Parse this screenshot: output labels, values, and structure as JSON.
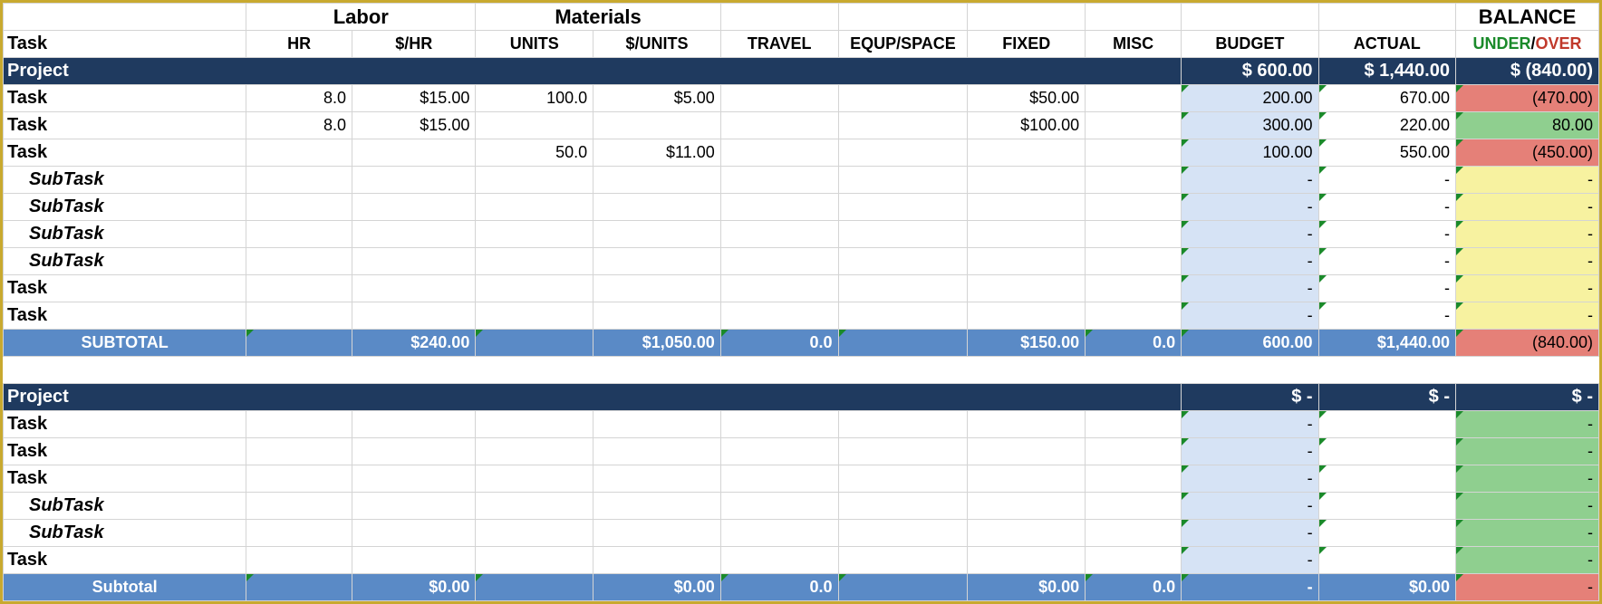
{
  "colors": {
    "frame": "#c8a92f",
    "project_bg": "#1f3a5f",
    "subtotal_bg": "#5a8ac6",
    "budget_bg": "#d6e3f5",
    "bal_over_bg": "#e58078",
    "bal_under_bg": "#8fcf8f",
    "bal_neutral_bg": "#f7f2a0",
    "under_text": "#1a8a2a",
    "over_text": "#c0392b",
    "grid": "#d4d4d4"
  },
  "header": {
    "task": "Task",
    "labor": "Labor",
    "materials": "Materials",
    "balance": "BALANCE",
    "under": "UNDER",
    "over": "OVER",
    "cols": {
      "hr": "HR",
      "rate": "$/HR",
      "units": "UNITS",
      "urate": "$/UNITS",
      "travel": "TRAVEL",
      "equp": "EQUP/SPACE",
      "fixed": "FIXED",
      "misc": "MISC",
      "budget": "BUDGET",
      "actual": "ACTUAL"
    }
  },
  "sections": [
    {
      "project": {
        "label": "Project",
        "budget": "$     600.00",
        "actual": "$ 1,440.00",
        "balance": "$        (840.00)"
      },
      "rows": [
        {
          "kind": "task",
          "label": "Task",
          "hr": "8.0",
          "rate": "$15.00",
          "units": "100.0",
          "urate": "$5.00",
          "travel": "",
          "equp": "",
          "fixed": "$50.00",
          "misc": "",
          "budget": "200.00",
          "actual": "670.00",
          "balance": "(470.00)",
          "bal": "red"
        },
        {
          "kind": "task",
          "label": "Task",
          "hr": "8.0",
          "rate": "$15.00",
          "units": "",
          "urate": "",
          "travel": "",
          "equp": "",
          "fixed": "$100.00",
          "misc": "",
          "budget": "300.00",
          "actual": "220.00",
          "balance": "80.00",
          "bal": "green"
        },
        {
          "kind": "task",
          "label": "Task",
          "hr": "",
          "rate": "",
          "units": "50.0",
          "urate": "$11.00",
          "travel": "",
          "equp": "",
          "fixed": "",
          "misc": "",
          "budget": "100.00",
          "actual": "550.00",
          "balance": "(450.00)",
          "bal": "red"
        },
        {
          "kind": "sub",
          "label": "SubTask",
          "budget": "-",
          "actual": "-",
          "balance": "-",
          "bal": "yellow"
        },
        {
          "kind": "sub",
          "label": "SubTask",
          "budget": "-",
          "actual": "-",
          "balance": "-",
          "bal": "yellow"
        },
        {
          "kind": "sub",
          "label": "SubTask",
          "budget": "-",
          "actual": "-",
          "balance": "-",
          "bal": "yellow"
        },
        {
          "kind": "sub",
          "label": "SubTask",
          "budget": "-",
          "actual": "-",
          "balance": "-",
          "bal": "yellow"
        },
        {
          "kind": "task",
          "label": "Task",
          "budget": "-",
          "actual": "-",
          "balance": "-",
          "bal": "yellow"
        },
        {
          "kind": "task",
          "label": "Task",
          "budget": "-",
          "actual": "-",
          "balance": "-",
          "bal": "yellow"
        }
      ],
      "subtotal": {
        "label": "SUBTOTAL",
        "labor": "$240.00",
        "materials": "$1,050.00",
        "travel": "0.0",
        "fixed": "$150.00",
        "misc": "0.0",
        "budget": "600.00",
        "actual": "$1,440.00",
        "balance": "(840.00)",
        "bal": "red"
      }
    },
    {
      "project": {
        "label": "Project",
        "budget": "$        -",
        "actual": "$        -",
        "balance": "$              -"
      },
      "rows": [
        {
          "kind": "task",
          "label": "Task",
          "budget": "-",
          "actual": "",
          "balance": "-",
          "bal": "green"
        },
        {
          "kind": "task",
          "label": "Task",
          "budget": "-",
          "actual": "",
          "balance": "-",
          "bal": "green"
        },
        {
          "kind": "task",
          "label": "Task",
          "budget": "-",
          "actual": "",
          "balance": "-",
          "bal": "green"
        },
        {
          "kind": "sub",
          "label": "SubTask",
          "budget": "-",
          "actual": "",
          "balance": "-",
          "bal": "green"
        },
        {
          "kind": "sub",
          "label": "SubTask",
          "budget": "-",
          "actual": "",
          "balance": "-",
          "bal": "green"
        },
        {
          "kind": "task",
          "label": "Task",
          "budget": "-",
          "actual": "",
          "balance": "-",
          "bal": "green"
        }
      ],
      "subtotal": {
        "label": "Subtotal",
        "labor": "$0.00",
        "materials": "$0.00",
        "travel": "0.0",
        "fixed": "$0.00",
        "misc": "0.0",
        "budget": "-",
        "actual": "$0.00",
        "balance": "-",
        "bal": "red"
      }
    }
  ]
}
